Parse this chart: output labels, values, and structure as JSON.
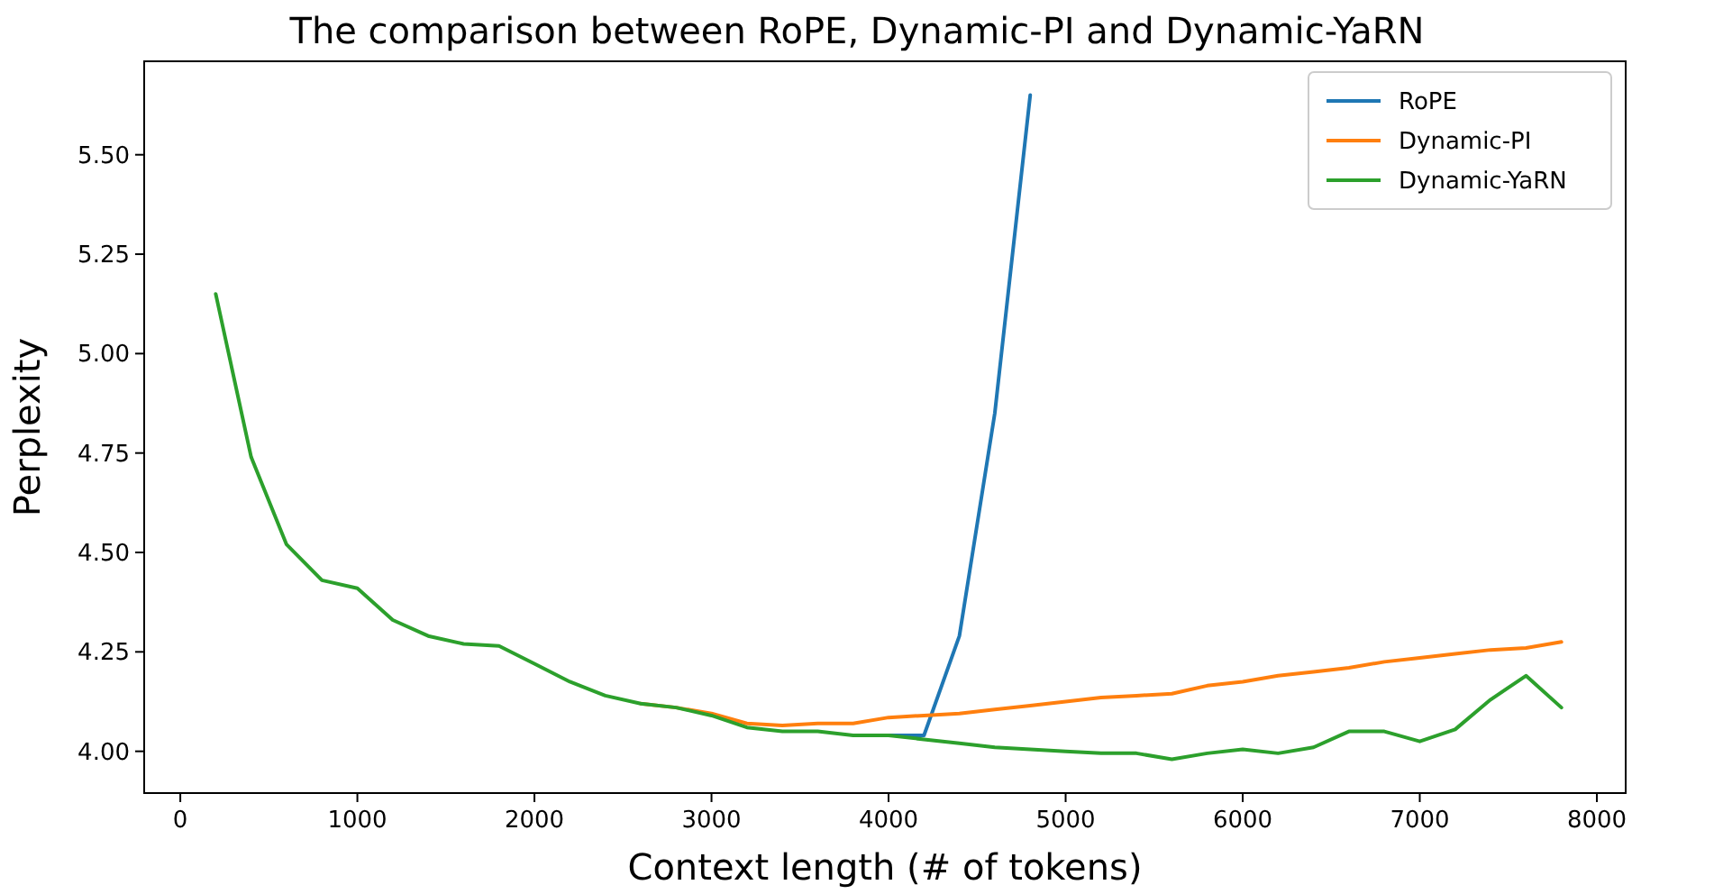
{
  "chart_data": {
    "type": "line",
    "title": "The comparison between RoPE, Dynamic-PI and Dynamic-YaRN",
    "xlabel": "Context length (# of tokens)",
    "ylabel": "Perplexity",
    "xlim": [
      -204,
      8163
    ],
    "xticks": [
      0,
      1000,
      2000,
      3000,
      4000,
      5000,
      6000,
      7000,
      8000
    ],
    "ylim": [
      3.895,
      5.735
    ],
    "yticks": [
      {
        "value": 4,
        "label": "4.00"
      },
      {
        "value": 4.25,
        "label": "4.25"
      },
      {
        "value": 4.5,
        "label": "4.50"
      },
      {
        "value": 4.75,
        "label": "4.75"
      },
      {
        "value": 5,
        "label": "5.00"
      },
      {
        "value": 5.25,
        "label": "5.25"
      },
      {
        "value": 5.5,
        "label": "5.50"
      }
    ],
    "legend": "top right",
    "grid": false,
    "series": [
      {
        "name": "RoPE",
        "color": "#1f77b4",
        "x": [
          4000,
          4200,
          4400,
          4600,
          4800
        ],
        "values": [
          4.04,
          4.04,
          4.29,
          4.85,
          5.65
        ]
      },
      {
        "name": "Dynamic-PI",
        "color": "#ff7f0e",
        "x": [
          2600,
          2800,
          3000,
          3200,
          3400,
          3600,
          3800,
          4000,
          4200,
          4400,
          4600,
          4800,
          5000,
          5200,
          5400,
          5600,
          5800,
          6000,
          6200,
          6400,
          6600,
          6800,
          7000,
          7200,
          7400,
          7600,
          7800
        ],
        "values": [
          4.12,
          4.11,
          4.095,
          4.07,
          4.065,
          4.07,
          4.07,
          4.085,
          4.09,
          4.095,
          4.105,
          4.115,
          4.125,
          4.135,
          4.14,
          4.145,
          4.165,
          4.175,
          4.19,
          4.2,
          4.21,
          4.225,
          4.235,
          4.245,
          4.255,
          4.26,
          4.275
        ]
      },
      {
        "name": "Dynamic-YaRN",
        "color": "#2ca02c",
        "x": [
          200,
          400,
          600,
          800,
          1000,
          1200,
          1400,
          1600,
          1800,
          2000,
          2200,
          2400,
          2600,
          2800,
          3000,
          3200,
          3400,
          3600,
          3800,
          4000,
          4200,
          4400,
          4600,
          4800,
          5000,
          5200,
          5400,
          5600,
          5800,
          6000,
          6200,
          6400,
          6600,
          6800,
          7000,
          7200,
          7400,
          7600,
          7800
        ],
        "values": [
          5.15,
          4.74,
          4.52,
          4.43,
          4.41,
          4.33,
          4.29,
          4.27,
          4.265,
          4.22,
          4.175,
          4.14,
          4.12,
          4.11,
          4.09,
          4.06,
          4.05,
          4.05,
          4.04,
          4.04,
          4.03,
          4.02,
          4.01,
          4.005,
          4.0,
          3.995,
          3.995,
          3.98,
          3.995,
          4.005,
          3.995,
          4.01,
          4.05,
          4.05,
          4.025,
          4.055,
          4.13,
          4.19,
          4.11
        ]
      }
    ]
  }
}
